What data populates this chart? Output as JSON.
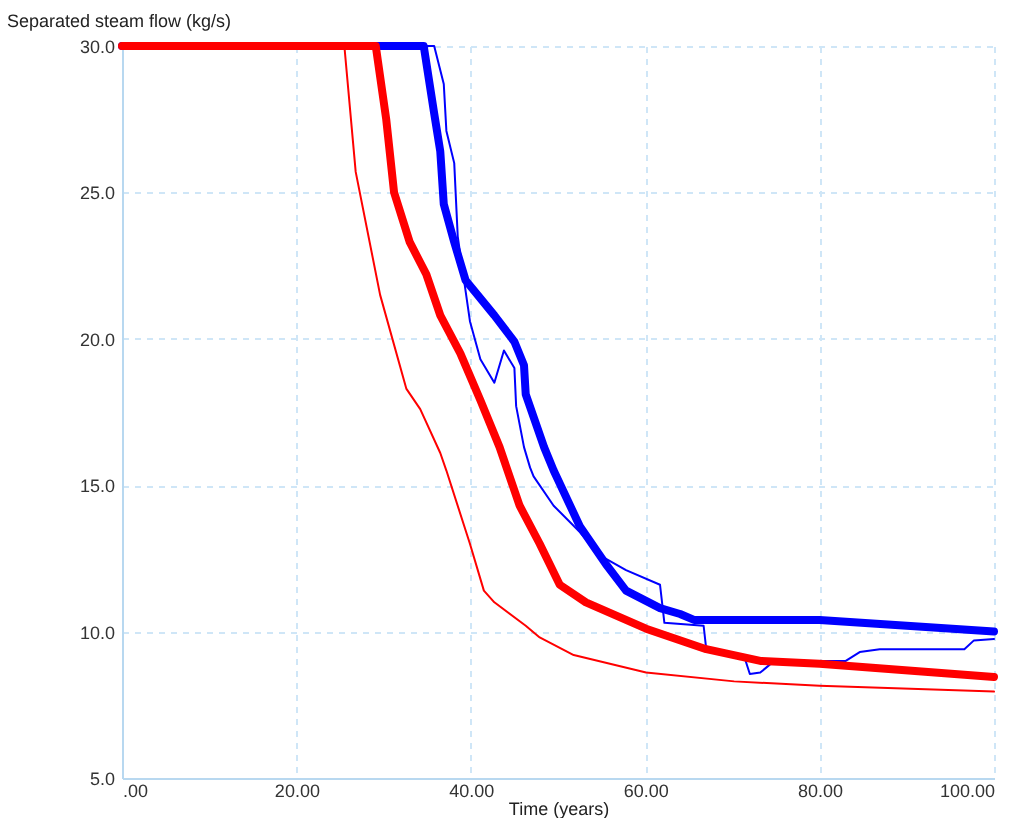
{
  "chart_data": {
    "type": "line",
    "xlabel": "Time (years)",
    "ylabel": "Separated steam flow (kg/s)",
    "xlim": [
      0,
      100
    ],
    "xticks": [
      {
        "value": 0,
        "label": ".00"
      },
      {
        "value": 20,
        "label": "20.00"
      },
      {
        "value": 40,
        "label": "40.00"
      },
      {
        "value": 60,
        "label": "60.00"
      },
      {
        "value": 80,
        "label": "80.00"
      },
      {
        "value": 100,
        "label": "100.00"
      }
    ],
    "ylim": [
      5,
      30
    ],
    "yticks": [
      {
        "value": 5,
        "label": "5.0"
      },
      {
        "value": 10,
        "label": "10.0"
      },
      {
        "value": 15,
        "label": "15.0"
      },
      {
        "value": 20,
        "label": "20.0"
      },
      {
        "value": 25,
        "label": "25.0"
      },
      {
        "value": 30,
        "label": "30.0"
      }
    ],
    "grid": true,
    "legend": false,
    "line_style": "solid",
    "series": [
      {
        "color": "#0000ff",
        "x": [
          0,
          34.6,
          35.8,
          36.5,
          36.9,
          38.1,
          39.4,
          42.7,
          45.0,
          46.1,
          46.3,
          48.4,
          49.5,
          52.5,
          55.5,
          57.8,
          61.7,
          64.0,
          65.6,
          80.0,
          100
        ],
        "values": [
          30,
          30,
          27.7,
          26.4,
          24.6,
          23.3,
          22.0,
          20.8,
          19.9,
          19.1,
          18.1,
          16.3,
          15.5,
          13.6,
          12.3,
          11.4,
          10.8,
          10.6,
          10.4,
          10.4,
          10.0
        ]
      },
      {
        "color": "#0000ff",
        "x": [
          0,
          35.8,
          36.9,
          37.2,
          38.1,
          38.5,
          39.9,
          41.1,
          42.7,
          43.8,
          45.0,
          45.2,
          46.1,
          46.8,
          47.2,
          49.5,
          52.5,
          54.8,
          57.8,
          61.7,
          62.2,
          66.7,
          67.0,
          71.3,
          72.0,
          73.2,
          74.8,
          83.0,
          84.6,
          86.9,
          96.6,
          97.7,
          100
        ],
        "values": [
          30,
          30,
          28.7,
          27.1,
          26.0,
          23.5,
          20.6,
          19.3,
          18.5,
          19.6,
          19.0,
          17.7,
          16.3,
          15.6,
          15.3,
          14.3,
          13.4,
          12.6,
          12.1,
          11.6,
          10.3,
          10.2,
          9.4,
          9.2,
          8.55,
          8.6,
          9.0,
          9.0,
          9.3,
          9.4,
          9.4,
          9.7,
          9.75
        ]
      },
      {
        "color": "#ff0000",
        "x": [
          0,
          29.1,
          30.3,
          31.2,
          33.0,
          34.9,
          36.5,
          38.8,
          41.1,
          43.3,
          45.6,
          47.9,
          50.2,
          53.2,
          60.1,
          67.0,
          73.2,
          80.0,
          100
        ],
        "values": [
          30,
          30,
          27.5,
          25.0,
          23.3,
          22.2,
          20.8,
          19.5,
          17.9,
          16.3,
          14.3,
          13.0,
          11.6,
          11.0,
          10.1,
          9.4,
          9.0,
          8.9,
          8.45
        ]
      },
      {
        "color": "#ff0000",
        "x": [
          0,
          25.5,
          26.8,
          29.6,
          32.6,
          34.2,
          36.5,
          37.2,
          39.9,
          41.5,
          42.7,
          46.3,
          47.9,
          51.8,
          60.1,
          70.2,
          80.0,
          100
        ],
        "values": [
          30,
          30,
          25.7,
          21.5,
          18.3,
          17.6,
          16.1,
          15.5,
          13.0,
          11.4,
          11.0,
          10.2,
          9.8,
          9.2,
          8.6,
          8.3,
          8.15,
          7.95
        ]
      }
    ]
  }
}
